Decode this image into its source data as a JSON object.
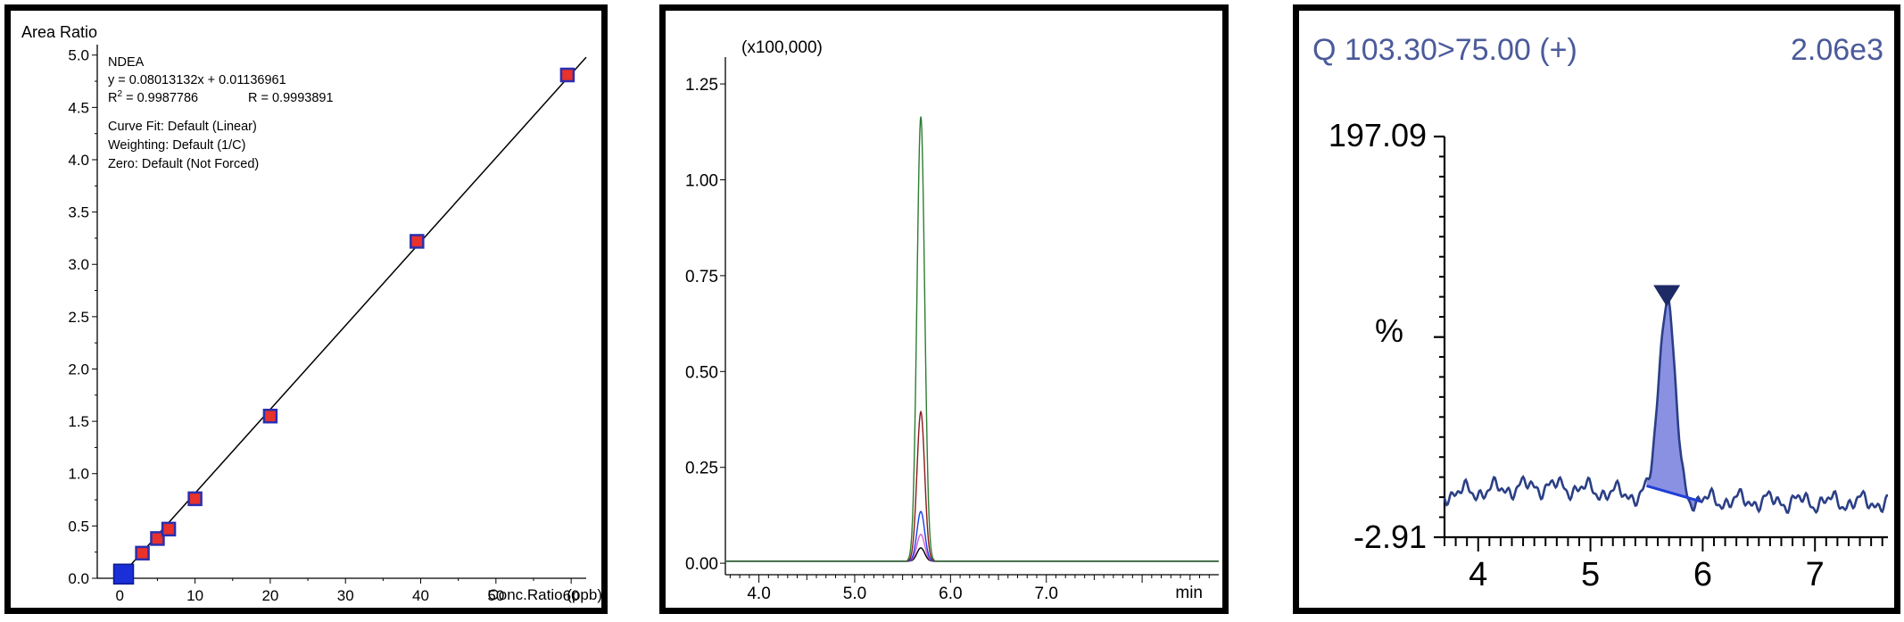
{
  "chart_data": [
    {
      "type": "scatter",
      "ylabel": "Area Ratio",
      "xlabel": "Conc.Ratio (ppb)",
      "xlim": [
        -3,
        62
      ],
      "ylim": [
        0,
        5.1
      ],
      "x_ticks": [
        0,
        10,
        20,
        30,
        40,
        50,
        60
      ],
      "y_ticks": [
        0.0,
        0.5,
        1.0,
        1.5,
        2.0,
        2.5,
        3.0,
        3.5,
        4.0,
        4.5,
        5.0
      ],
      "x_tick_labels": [
        "0",
        "10",
        "20",
        "30",
        "40",
        "50",
        "60"
      ],
      "y_tick_labels": [
        "0.0",
        "0.5",
        "1.0",
        "1.5",
        "2.0",
        "2.5",
        "3.0",
        "3.5",
        "4.0",
        "4.5",
        "5.0"
      ],
      "annotation": {
        "compound": "NDEA",
        "equation": "y = 0.08013132x + 0.01136961",
        "r2_label": "R",
        "r2_sup": "2",
        "r2_value": " = 0.9987786",
        "r_text": "R = 0.9993891",
        "curve_fit": "Curve Fit: Default (Linear)",
        "weighting": "Weighting: Default (1/C)",
        "zero": "Zero: Default (Not Forced)"
      },
      "fit": {
        "slope": 0.08013132,
        "intercept": 0.01136961
      },
      "points": [
        {
          "x": 3.0,
          "y": 0.24
        },
        {
          "x": 5.0,
          "y": 0.38
        },
        {
          "x": 6.5,
          "y": 0.47
        },
        {
          "x": 10.0,
          "y": 0.76
        },
        {
          "x": 20.0,
          "y": 1.55
        },
        {
          "x": 39.5,
          "y": 3.22
        },
        {
          "x": 59.5,
          "y": 4.81
        }
      ],
      "origin_point": {
        "x": 0.5,
        "y": 0.04
      },
      "colors": {
        "point_fill": "#e8322b",
        "point_edge": "#2a2fb0",
        "origin_fill": "#1a2fd8",
        "line": "#000000"
      }
    },
    {
      "type": "line",
      "yunit": "(x100,000)",
      "xunit": "min",
      "xlim": [
        3.65,
        8.8
      ],
      "ylim": [
        -0.03,
        1.32
      ],
      "x_ticks": [
        4.0,
        5.0,
        6.0,
        7.0
      ],
      "x_tick_labels": [
        "4.0",
        "5.0",
        "6.0",
        "7.0"
      ],
      "y_ticks": [
        0.0,
        0.25,
        0.5,
        0.75,
        1.0,
        1.25
      ],
      "y_tick_labels": [
        "0.00",
        "0.25",
        "0.50",
        "0.75",
        "1.00",
        "1.25"
      ],
      "peak_rt": 5.69,
      "baseline": 0.005,
      "series": [
        {
          "color": "#2e7d32",
          "height": 1.16
        },
        {
          "color": "#8b1a1a",
          "height": 0.39
        },
        {
          "color": "#1a3ee8",
          "height": 0.13
        },
        {
          "color": "#d35bd8",
          "height": 0.07
        },
        {
          "color": "#000000",
          "height": 0.035
        }
      ]
    },
    {
      "type": "area",
      "title_left": "Q 103.30>75.00 (+)",
      "title_right": "2.06e3",
      "y_top_label": "197.09",
      "y_bottom_label": "-2.91",
      "y_mid_label": "%",
      "xlim": [
        3.7,
        7.65
      ],
      "ylim": [
        -2.91,
        197.09
      ],
      "x_ticks": [
        4,
        5,
        6,
        7
      ],
      "x_tick_labels": [
        "4",
        "5",
        "6",
        "7"
      ],
      "peak_rt": 5.68,
      "peak_height": 100,
      "baseline_level": 18,
      "colors": {
        "trace": "#2b3f86",
        "fill": "#7d85e0",
        "baseline": "#1f3fd6",
        "marker": "#1e2a66",
        "title": "#4a5a9a"
      }
    }
  ]
}
